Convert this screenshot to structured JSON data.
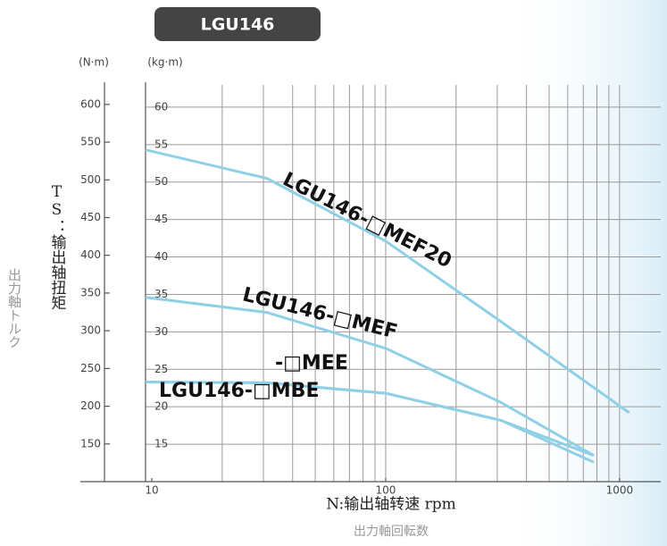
{
  "chart_data": {
    "type": "line",
    "title": "LGU146",
    "y2_label": "(N·m)",
    "y_label": "(kg·m)",
    "y_title": "TS：输出轴扭矩",
    "y_subtitle": "出力軸トルク",
    "x_title": "N:输出轴转速 rpm",
    "x_subtitle": "出力軸回転数",
    "x_log": true,
    "grid": true,
    "xlim": [
      9.4,
      1500
    ],
    "xticks": [
      10,
      100,
      1000
    ],
    "xgrid": [
      20,
      30,
      40,
      50,
      60,
      70,
      80,
      90,
      100,
      200,
      300,
      400,
      500,
      600,
      700,
      800,
      900,
      1000
    ],
    "ylim": [
      10,
      65
    ],
    "yticks": [
      15,
      20,
      25,
      30,
      35,
      40,
      45,
      50,
      55,
      60
    ],
    "y2lim": [
      100,
      646
    ],
    "y2ticks": [
      150,
      200,
      250,
      300,
      350,
      400,
      450,
      500,
      550,
      600
    ],
    "series": [
      {
        "name": "LGU146-□MEF20",
        "color": "#8fd0e6",
        "x": [
          9.4,
          31,
          100,
          310,
          1100
        ],
        "values": [
          54.3,
          50.5,
          42.1,
          31.4,
          19.2
        ]
      },
      {
        "name": "LGU146-□MEF",
        "color": "#8fd0e6",
        "x": [
          9.4,
          31,
          100,
          310,
          776
        ],
        "values": [
          34.6,
          32.6,
          27.8,
          20.6,
          13.5
        ]
      },
      {
        "name": "-□MEE",
        "color": "#8fd0e6",
        "x": [
          9.4,
          31,
          100,
          310,
          776
        ],
        "values": [
          23.3,
          23.2,
          21.8,
          18.2,
          12.6
        ]
      },
      {
        "name": "LGU146-□MBE",
        "color": "#8fd0e6",
        "x": [
          9.4,
          31,
          100,
          310,
          776
        ],
        "values": [
          23.3,
          23.2,
          21.8,
          18.2,
          13.5
        ]
      }
    ]
  }
}
